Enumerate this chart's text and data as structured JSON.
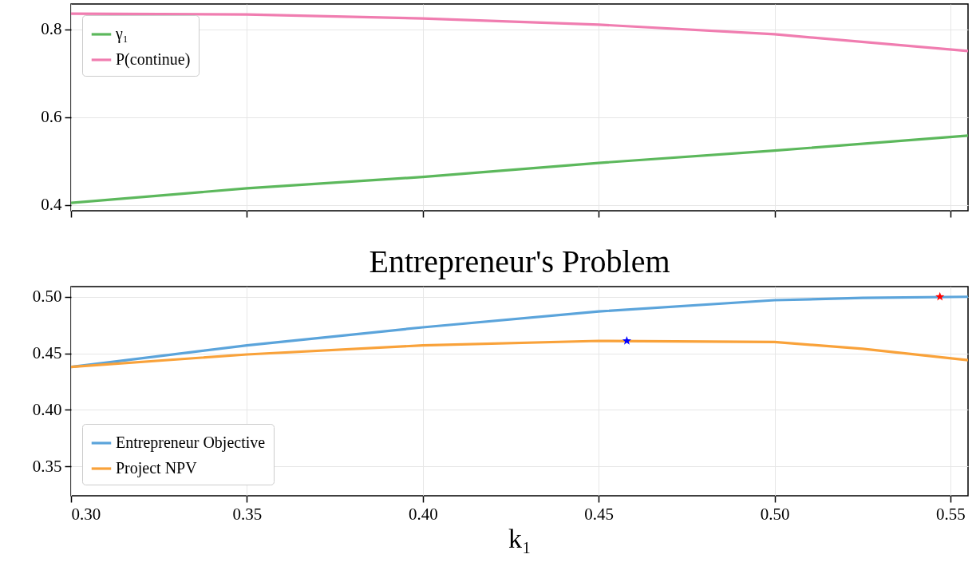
{
  "chart_data": [
    {
      "type": "line",
      "xlim": [
        0.3,
        0.555
      ],
      "xticks": [
        {
          "value": 0.3,
          "label": null
        },
        {
          "value": 0.35,
          "label": null
        },
        {
          "value": 0.4,
          "label": null
        },
        {
          "value": 0.45,
          "label": null
        },
        {
          "value": 0.5,
          "label": null
        },
        {
          "value": 0.55,
          "label": null
        }
      ],
      "ylim": [
        0.387,
        0.858
      ],
      "yticks": [
        {
          "value": 0.4,
          "label": "0.4"
        },
        {
          "value": 0.6,
          "label": "0.6"
        },
        {
          "value": 0.8,
          "label": "0.8"
        }
      ],
      "tick_labels": "y",
      "grid": true,
      "legend": "top left",
      "x": [
        0.3,
        0.35,
        0.4,
        0.45,
        0.5,
        0.555
      ],
      "series": [
        {
          "name": "γ₁",
          "color": "#5cb85c",
          "values": [
            0.405,
            0.438,
            0.464,
            0.496,
            0.524,
            0.558
          ]
        },
        {
          "name": "P(continue)",
          "color": "#f07db0",
          "values": [
            0.836,
            0.834,
            0.825,
            0.811,
            0.789,
            0.751
          ]
        }
      ]
    },
    {
      "type": "line",
      "title": "Entrepreneur's Problem",
      "xlabel": "k₁",
      "xlim": [
        0.3,
        0.555
      ],
      "xticks": [
        {
          "value": 0.3,
          "label": "0.30"
        },
        {
          "value": 0.35,
          "label": "0.35"
        },
        {
          "value": 0.4,
          "label": "0.40"
        },
        {
          "value": 0.45,
          "label": "0.45"
        },
        {
          "value": 0.5,
          "label": "0.50"
        },
        {
          "value": 0.55,
          "label": "0.55"
        }
      ],
      "ylim": [
        0.324,
        0.509
      ],
      "yticks": [
        {
          "value": 0.35,
          "label": "0.35"
        },
        {
          "value": 0.4,
          "label": "0.40"
        },
        {
          "value": 0.45,
          "label": "0.45"
        },
        {
          "value": 0.5,
          "label": "0.50"
        }
      ],
      "grid": true,
      "legend": "bottom left",
      "x": [
        0.3,
        0.35,
        0.4,
        0.45,
        0.5,
        0.525,
        0.555
      ],
      "series": [
        {
          "name": "Entrepreneur Objective",
          "color": "#5ba4db",
          "values": [
            0.438,
            0.457,
            0.473,
            0.487,
            0.497,
            0.499,
            0.5
          ]
        },
        {
          "name": "Project NPV",
          "color": "#f9a23a",
          "values": [
            0.438,
            0.449,
            0.457,
            0.461,
            0.46,
            0.454,
            0.444
          ]
        },
        {
          "type": "scatter",
          "marker": "star",
          "color": "#ff0000",
          "x": [
            0.547
          ],
          "values": [
            0.5
          ]
        },
        {
          "type": "scatter",
          "marker": "star",
          "color": "#0000ff",
          "x": [
            0.458
          ],
          "values": [
            0.461
          ]
        }
      ]
    }
  ]
}
